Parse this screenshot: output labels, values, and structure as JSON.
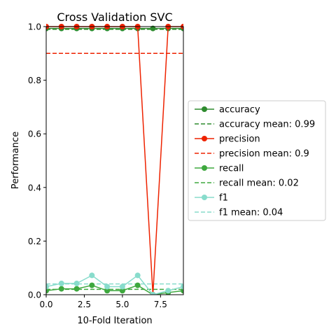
{
  "chart_data": {
    "type": "line",
    "title": "Cross Validation SVC",
    "xlabel": "10-Fold Iteration",
    "ylabel": "Performance",
    "xlim": [
      0,
      9
    ],
    "ylim": [
      0,
      1
    ],
    "xticks": [
      "0.0",
      "2.5",
      "5.0",
      "7.5"
    ],
    "xtick_values": [
      0,
      2.5,
      5.0,
      7.5
    ],
    "yticks": [
      "0.0",
      "0.2",
      "0.4",
      "0.6",
      "0.8",
      "1.0"
    ],
    "ytick_values": [
      0,
      0.2,
      0.4,
      0.6,
      0.8,
      1.0
    ],
    "grid": false,
    "legend_position": "center-right outside",
    "x": [
      0,
      1,
      2,
      3,
      4,
      5,
      6,
      7,
      8,
      9
    ],
    "series": [
      {
        "name": "accuracy",
        "color": "#2e8b2e",
        "values": [
          0.993,
          0.993,
          0.993,
          0.993,
          0.993,
          0.993,
          0.993,
          0.993,
          0.993,
          0.993
        ]
      },
      {
        "name": "precision",
        "color": "#ee2200",
        "values": [
          1.0,
          1.0,
          1.0,
          1.0,
          1.0,
          1.0,
          1.0,
          0.0,
          1.0,
          1.0
        ]
      },
      {
        "name": "recall",
        "color": "#3ea83e",
        "values": [
          0.015,
          0.022,
          0.022,
          0.035,
          0.015,
          0.015,
          0.035,
          0.0,
          0.008,
          0.015
        ]
      },
      {
        "name": "f1",
        "color": "#88dccc",
        "values": [
          0.03,
          0.042,
          0.042,
          0.072,
          0.03,
          0.03,
          0.072,
          0.0,
          0.015,
          0.03
        ]
      }
    ],
    "means": [
      {
        "name": "accuracy mean: 0.99",
        "color": "#2e8b2e",
        "value": 0.99
      },
      {
        "name": "precision mean: 0.9",
        "color": "#ee2200",
        "value": 0.9
      },
      {
        "name": "recall mean: 0.02",
        "color": "#3ea83e",
        "value": 0.02
      },
      {
        "name": "f1 mean: 0.04",
        "color": "#88dccc",
        "value": 0.04
      }
    ],
    "legend": [
      {
        "label": "accuracy",
        "style": "line-marker",
        "color": "#2e8b2e"
      },
      {
        "label": "accuracy mean: 0.99",
        "style": "dashed",
        "color": "#2e8b2e"
      },
      {
        "label": "precision",
        "style": "line-marker",
        "color": "#ee2200"
      },
      {
        "label": "precision mean: 0.9",
        "style": "dashed",
        "color": "#ee2200"
      },
      {
        "label": "recall",
        "style": "line-marker",
        "color": "#3ea83e"
      },
      {
        "label": "recall mean: 0.02",
        "style": "dashed",
        "color": "#3ea83e"
      },
      {
        "label": "f1",
        "style": "line-marker",
        "color": "#88dccc"
      },
      {
        "label": "f1 mean: 0.04",
        "style": "dashed",
        "color": "#88dccc"
      }
    ]
  }
}
